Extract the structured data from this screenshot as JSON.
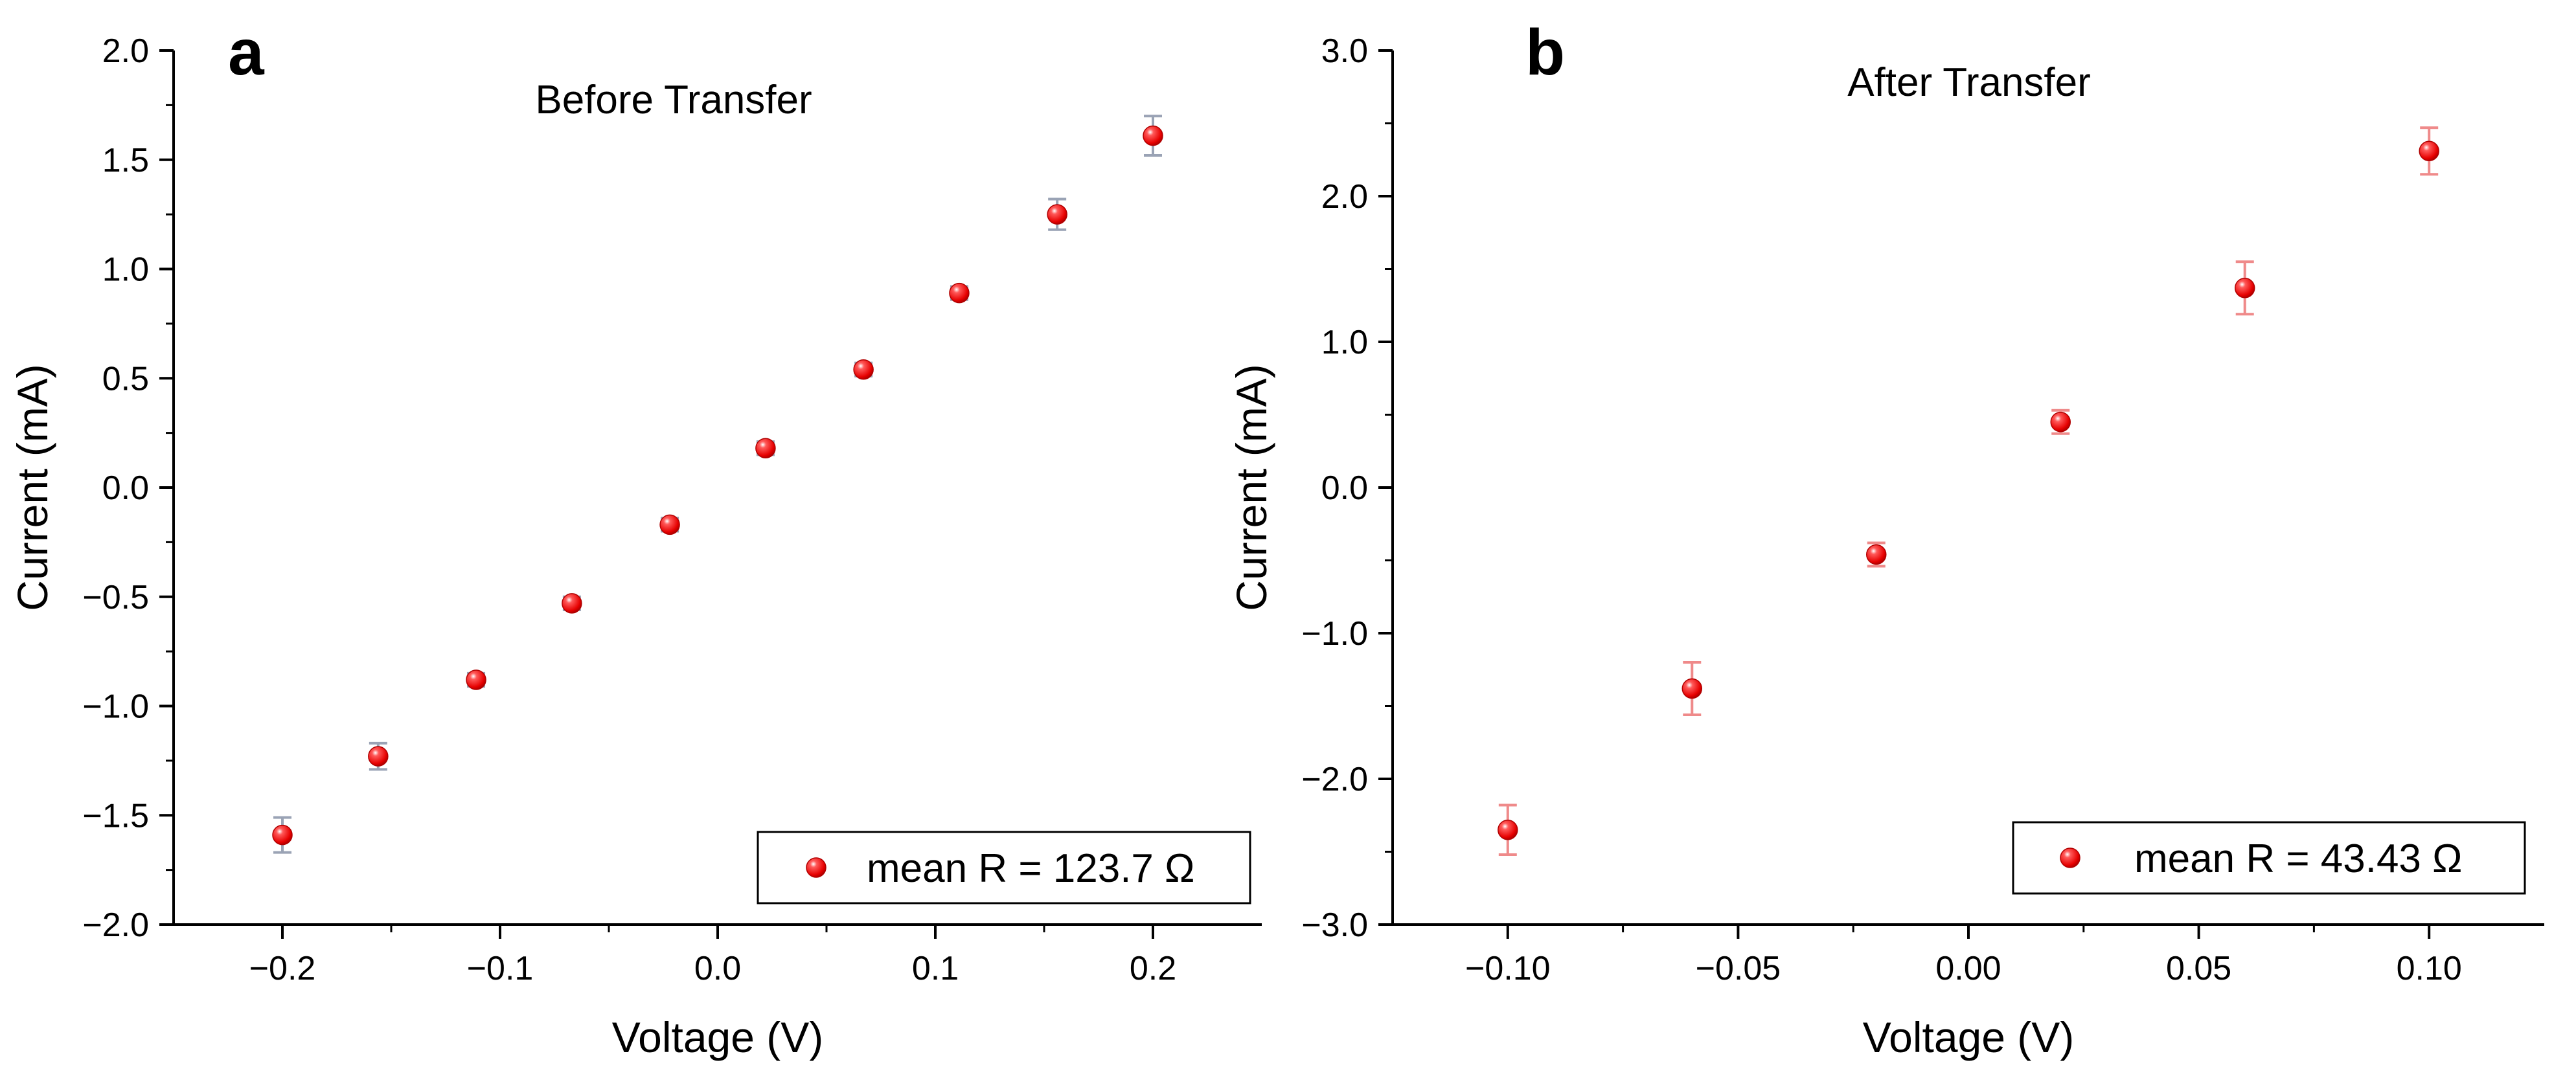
{
  "chart_data": [
    {
      "type": "scatter",
      "panel_label": "a",
      "title": "Before Transfer",
      "xlabel": "Voltage (V)",
      "ylabel": "Current (mA)",
      "xlim": [
        -0.25,
        0.25
      ],
      "ylim": [
        -2.0,
        2.0
      ],
      "xticks": [
        -0.2,
        -0.1,
        0.0,
        0.1,
        0.2
      ],
      "xtick_labels": [
        "−0.2",
        "−0.1",
        "0.0",
        "0.1",
        "0.2"
      ],
      "yticks": [
        -2.0,
        -1.5,
        -1.0,
        -0.5,
        0.0,
        0.5,
        1.0,
        1.5,
        2.0
      ],
      "ytick_labels": [
        "−2.0",
        "−1.5",
        "−1.0",
        "−0.5",
        "0.0",
        "0.5",
        "1.0",
        "1.5",
        "2.0"
      ],
      "grid": false,
      "legend_position": "bottom-right",
      "marker_color": "#ee1111",
      "errorbar_color": "#9aa3b5",
      "series": [
        {
          "name": "mean R = 123.7 Ω",
          "x": [
            -0.2,
            -0.156,
            -0.111,
            -0.067,
            -0.022,
            0.022,
            0.067,
            0.111,
            0.156,
            0.2
          ],
          "y": [
            -1.59,
            -1.23,
            -0.88,
            -0.53,
            -0.17,
            0.18,
            0.54,
            0.89,
            1.25,
            1.61
          ],
          "yerr": [
            0.08,
            0.06,
            0.03,
            0.03,
            0.03,
            0.03,
            0.03,
            0.03,
            0.07,
            0.09
          ]
        }
      ]
    },
    {
      "type": "scatter",
      "panel_label": "b",
      "title": "After Transfer",
      "xlabel": "Voltage (V)",
      "ylabel": "Current (mA)",
      "xlim": [
        -0.125,
        0.125
      ],
      "ylim": [
        -3.0,
        3.0
      ],
      "xticks": [
        -0.1,
        -0.05,
        0.0,
        0.05,
        0.1
      ],
      "xtick_labels": [
        "−0.10",
        "−0.05",
        "0.00",
        "0.05",
        "0.10"
      ],
      "yticks": [
        -3.0,
        -2.0,
        -1.0,
        0.0,
        1.0,
        2.0,
        3.0
      ],
      "ytick_labels": [
        "−3.0",
        "−2.0",
        "−1.0",
        "0.0",
        "1.0",
        "2.0",
        "3.0"
      ],
      "grid": false,
      "legend_position": "bottom-right",
      "marker_color": "#ee1111",
      "errorbar_color": "#ef8a8a",
      "series": [
        {
          "name": "mean R = 43.43 Ω",
          "x": [
            -0.1,
            -0.06,
            -0.02,
            0.02,
            0.06,
            0.1
          ],
          "y": [
            -2.35,
            -1.38,
            -0.46,
            0.45,
            1.37,
            2.31
          ],
          "yerr": [
            0.17,
            0.18,
            0.08,
            0.08,
            0.18,
            0.16
          ]
        }
      ]
    }
  ]
}
